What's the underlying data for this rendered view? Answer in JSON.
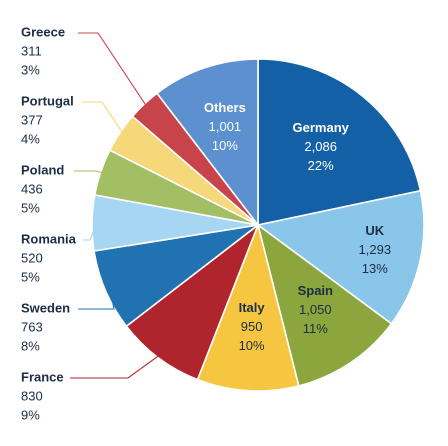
{
  "chart_data": {
    "type": "pie",
    "title": "",
    "slices": [
      {
        "label": "Germany",
        "value": 2086,
        "value_text": "2,086",
        "percent_text": "22%",
        "color": "#1460a6",
        "text_color": "#ffffff"
      },
      {
        "label": "UK",
        "value": 1293,
        "value_text": "1,293",
        "percent_text": "13%",
        "color": "#8ac6ea",
        "text_color": "#1d2d44"
      },
      {
        "label": "Spain",
        "value": 1050,
        "value_text": "1,050",
        "percent_text": "11%",
        "color": "#8aa63c",
        "text_color": "#1d2d44"
      },
      {
        "label": "Italy",
        "value": 950,
        "value_text": "950",
        "percent_text": "10%",
        "color": "#f6c640",
        "text_color": "#1d2d44"
      },
      {
        "label": "France",
        "value": 830,
        "value_text": "830",
        "percent_text": "9%",
        "color": "#b0242d",
        "text_color": "#1d2d44"
      },
      {
        "label": "Sweden",
        "value": 763,
        "value_text": "763",
        "percent_text": "8%",
        "color": "#2172b0",
        "text_color": "#1d2d44"
      },
      {
        "label": "Romania",
        "value": 520,
        "value_text": "520",
        "percent_text": "5%",
        "color": "#a6d6f1",
        "text_color": "#1d2d44"
      },
      {
        "label": "Poland",
        "value": 436,
        "value_text": "436",
        "percent_text": "5%",
        "color": "#a2bf63",
        "text_color": "#1d2d44"
      },
      {
        "label": "Portugal",
        "value": 377,
        "value_text": "377",
        "percent_text": "4%",
        "color": "#f6d77a",
        "text_color": "#1d2d44"
      },
      {
        "label": "Greece",
        "value": 311,
        "value_text": "311",
        "percent_text": "3%",
        "color": "#c8444b",
        "text_color": "#1d2d44"
      },
      {
        "label": "Others",
        "value": 1001,
        "value_text": "1,001",
        "percent_text": "10%",
        "color": "#5c90ce",
        "text_color": "#ffffff"
      }
    ]
  }
}
